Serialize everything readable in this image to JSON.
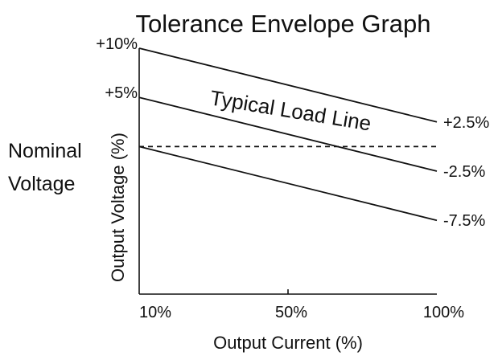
{
  "chart_data": {
    "type": "line",
    "title": "Tolerance Envelope Graph",
    "xlabel": "Output Current (%)",
    "ylabel": "Output Voltage (%)",
    "side_label": [
      "Nominal",
      "Voltage"
    ],
    "x_ticks": [
      "10%",
      "50%",
      "100%"
    ],
    "xlim": [
      10,
      100
    ],
    "ylim": [
      -15,
      10
    ],
    "grid": false,
    "series": [
      {
        "label": "+2.5%",
        "x": [
          10,
          100
        ],
        "y": [
          10,
          2.5
        ],
        "style": "solid",
        "start_label": "+10%"
      },
      {
        "label": "-2.5%",
        "x": [
          10,
          100
        ],
        "y": [
          5,
          -2.5
        ],
        "style": "solid",
        "start_label": "+5%"
      },
      {
        "label": "-7.5%",
        "x": [
          10,
          100
        ],
        "y": [
          0,
          -7.5
        ],
        "style": "solid"
      },
      {
        "x": [
          10,
          100
        ],
        "y": [
          0,
          0
        ],
        "style": "dashed"
      }
    ],
    "annotation": "Typical Load Line"
  }
}
